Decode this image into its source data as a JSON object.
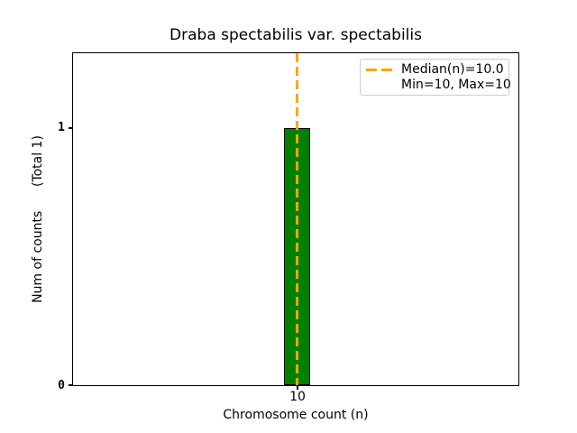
{
  "chart_data": {
    "type": "bar",
    "title": "Draba spectabilis var. spectabilis",
    "xlabel": "Chromosome count (n)",
    "ylabel": "Num of counts      (Total 1)",
    "categories": [
      "10"
    ],
    "values": [
      1
    ],
    "x": [
      10
    ],
    "total_counts": 1,
    "median_n": 10.0,
    "min_n": 10,
    "max_n": 10,
    "xticks": [
      "10"
    ],
    "yticks": [
      "0",
      "1"
    ],
    "ylim": [
      0,
      1.29
    ],
    "grid": false,
    "legend_position": "upper right",
    "legend_entries": [
      "Median(n)=10.0",
      "Min=10, Max=10"
    ],
    "median_line": {
      "x": 10,
      "style": "dashed",
      "orientation": "vertical"
    },
    "colors": {
      "bar_fill": "#008000",
      "bar_edge": "#000000",
      "median_line": "#FFA500",
      "legend_border": "#cccccc",
      "text": "#000000",
      "background": "#ffffff"
    }
  }
}
